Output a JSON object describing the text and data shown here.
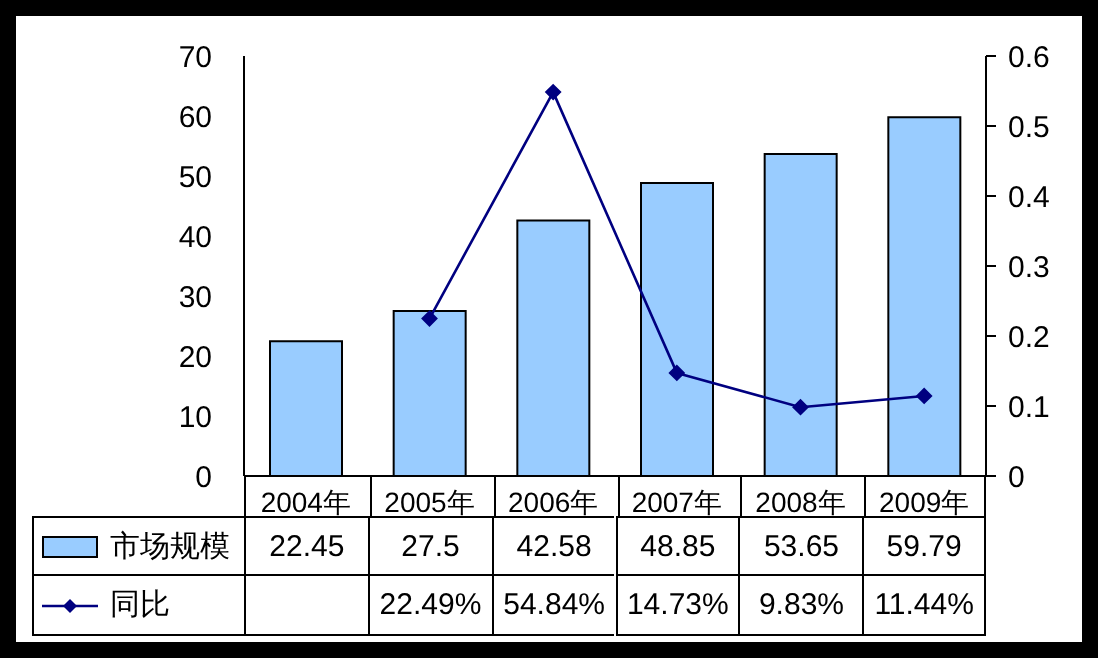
{
  "chart_data": {
    "type": "bar",
    "categories": [
      "2004年",
      "2005年",
      "2006年",
      "2007年",
      "2008年",
      "2009年"
    ],
    "series": [
      {
        "name": "市场规模",
        "color": "#99ccff",
        "values": [
          22.45,
          27.5,
          42.58,
          48.85,
          53.65,
          59.79
        ]
      },
      {
        "name": "同比",
        "type": "line",
        "axis": "y2",
        "color": "#000080",
        "marker": "diamond",
        "values": [
          null,
          0.2249,
          0.5484,
          0.1473,
          0.0983,
          0.1144
        ],
        "value_labels": [
          null,
          "22.49%",
          "54.84%",
          "14.73%",
          "9.83%",
          "11.44%"
        ]
      }
    ],
    "data_labels": true,
    "ylim": [
      0,
      70
    ],
    "yticks": [
      0,
      10,
      20,
      30,
      40,
      50,
      60,
      70
    ],
    "y2lim": [
      0,
      0.6
    ],
    "y2ticks": [
      0,
      0.1,
      0.2,
      0.3,
      0.4,
      0.5,
      0.6
    ],
    "grid": false,
    "legend": "bottom"
  }
}
